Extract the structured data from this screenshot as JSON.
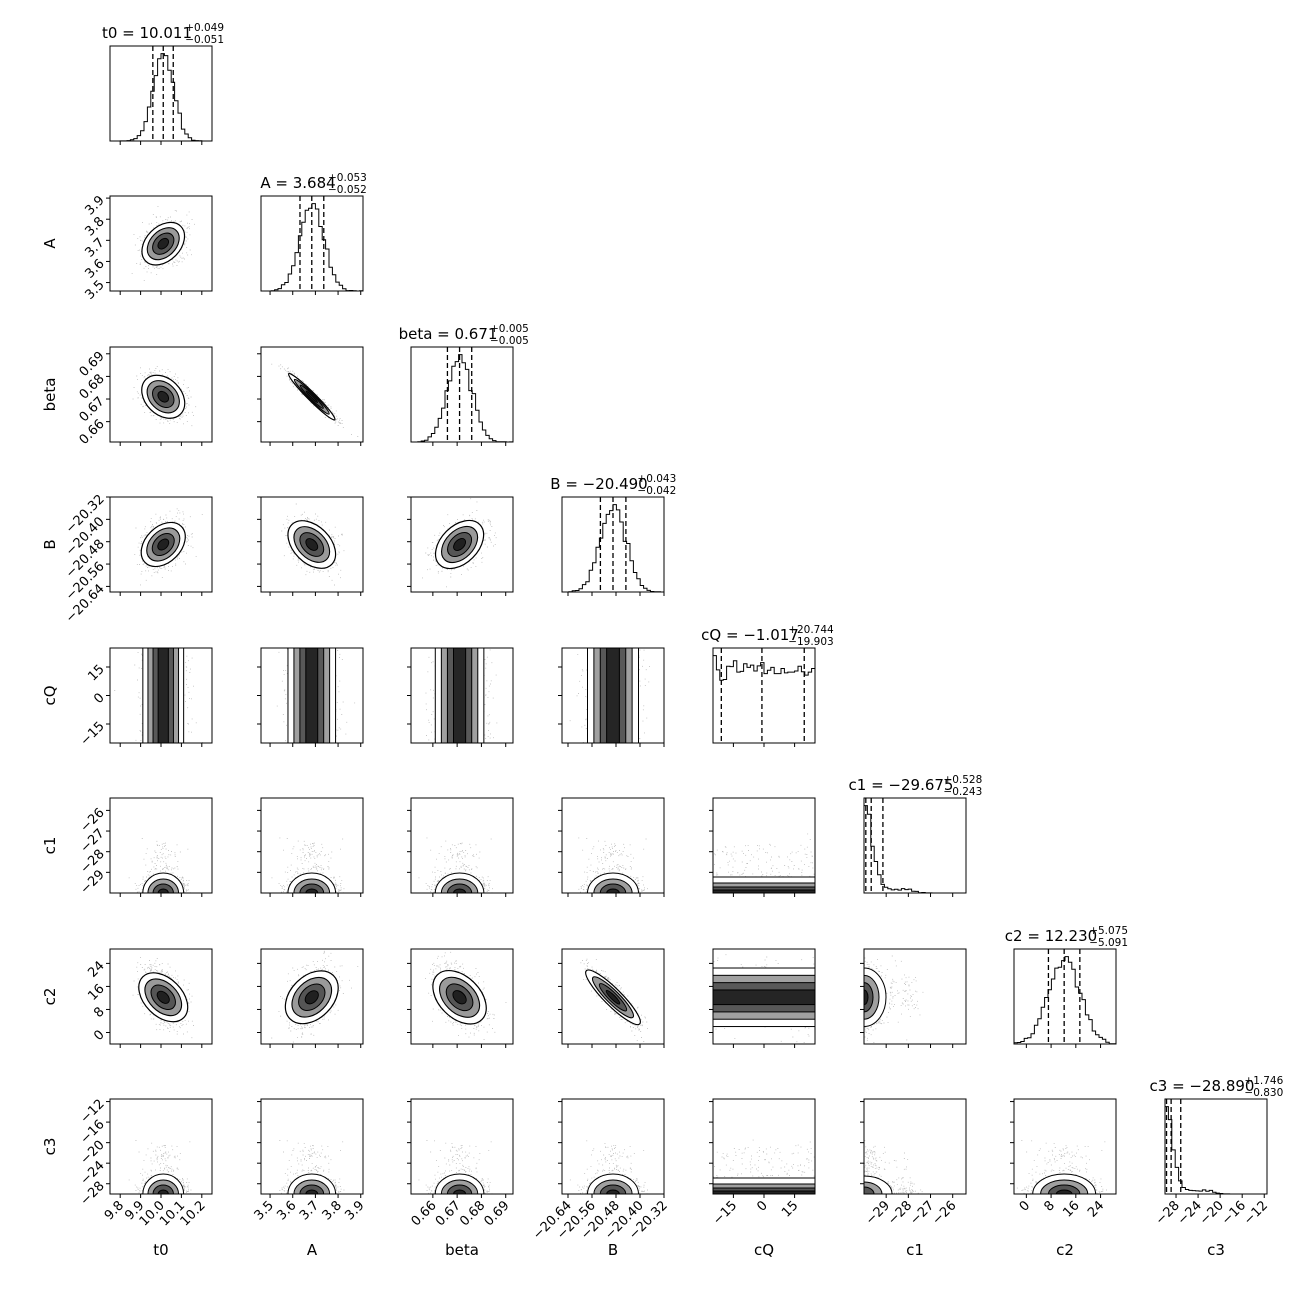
{
  "chart_data": {
    "type": "corner",
    "parameters": [
      {
        "name": "t0",
        "median": 10.011,
        "plus": 0.049,
        "minus": 0.051,
        "title_value": "10.011",
        "title_plus": "+0.049",
        "title_minus": "−0.051",
        "range": [
          9.75,
          10.25
        ],
        "ticks": [
          9.8,
          9.9,
          10.0,
          10.1,
          10.2
        ],
        "tick_labels": [
          "9.8",
          "9.9",
          "10.0",
          "10.1",
          "10.2"
        ]
      },
      {
        "name": "A",
        "median": 3.684,
        "plus": 0.053,
        "minus": 0.052,
        "title_value": "3.684",
        "title_plus": "+0.053",
        "title_minus": "−0.052",
        "range": [
          3.46,
          3.91
        ],
        "ticks": [
          3.5,
          3.6,
          3.7,
          3.8,
          3.9
        ],
        "tick_labels": [
          "3.5",
          "3.6",
          "3.7",
          "3.8",
          "3.9"
        ]
      },
      {
        "name": "beta",
        "median": 0.671,
        "plus": 0.005,
        "minus": 0.005,
        "title_value": "0.671",
        "title_plus": "+0.005",
        "title_minus": "−0.005",
        "range": [
          0.651,
          0.693
        ],
        "ticks": [
          0.66,
          0.67,
          0.68,
          0.69
        ],
        "tick_labels": [
          "0.66",
          "0.67",
          "0.68",
          "0.69"
        ]
      },
      {
        "name": "B",
        "median": -20.49,
        "plus": 0.043,
        "minus": 0.042,
        "title_value": "−20.490",
        "title_plus": "+0.043",
        "title_minus": "−0.042",
        "range": [
          -20.66,
          -20.32
        ],
        "ticks": [
          -20.64,
          -20.56,
          -20.48,
          -20.4,
          -20.32
        ],
        "tick_labels": [
          "−20.64",
          "−20.56",
          "−20.48",
          "−20.40",
          "−20.32"
        ]
      },
      {
        "name": "cQ",
        "median": -1.017,
        "plus": 20.744,
        "minus": 19.903,
        "title_value": "−1.017",
        "title_plus": "+20.744",
        "title_minus": "−19.903",
        "range": [
          -25,
          25
        ],
        "ticks": [
          -15,
          0,
          15
        ],
        "tick_labels": [
          "−15",
          "0",
          "15"
        ]
      },
      {
        "name": "c1",
        "median": -29.675,
        "plus": 0.528,
        "minus": 0.243,
        "title_value": "−29.675",
        "title_plus": "+0.528",
        "title_minus": "−0.243",
        "range": [
          -30,
          -25.4
        ],
        "ticks": [
          -29,
          -28,
          -27,
          -26
        ],
        "tick_labels": [
          "−29",
          "−28",
          "−27",
          "−26"
        ]
      },
      {
        "name": "c2",
        "median": 12.23,
        "plus": 5.075,
        "minus": 5.091,
        "title_value": "12.230",
        "title_plus": "+5.075",
        "title_minus": "−5.091",
        "range": [
          -4,
          29
        ],
        "ticks": [
          0,
          8,
          16,
          24
        ],
        "tick_labels": [
          "0",
          "8",
          "16",
          "24"
        ]
      },
      {
        "name": "c3",
        "median": -28.89,
        "plus": 1.746,
        "minus": 0.83,
        "title_value": "−28.890",
        "title_plus": "+1.746",
        "title_minus": "−0.830",
        "range": [
          -30,
          -11.5
        ],
        "ticks": [
          -28,
          -24,
          -20,
          -16,
          -12
        ],
        "tick_labels": [
          "−28",
          "−24",
          "−20",
          "−16",
          "−12"
        ]
      }
    ],
    "correlations": [
      [
        "t0",
        "A",
        0.35
      ],
      [
        "t0",
        "beta",
        -0.3
      ],
      [
        "t0",
        "B",
        0.35
      ],
      [
        "A",
        "beta",
        -0.97
      ],
      [
        "A",
        "B",
        -0.4
      ],
      [
        "beta",
        "B",
        0.4
      ],
      [
        "t0",
        "c2",
        -0.4
      ],
      [
        "A",
        "c2",
        0.35
      ],
      [
        "beta",
        "c2",
        -0.4
      ],
      [
        "B",
        "c2",
        -0.9
      ],
      [
        "c1",
        "c3",
        -0.3
      ]
    ],
    "title_format": "{name} = {value}",
    "axis_labels": [
      "t0",
      "A",
      "beta",
      "B",
      "cQ",
      "c1",
      "c2",
      "c3"
    ],
    "grid": false,
    "colors": {
      "ink": "#000000",
      "background": "#ffffff"
    }
  }
}
